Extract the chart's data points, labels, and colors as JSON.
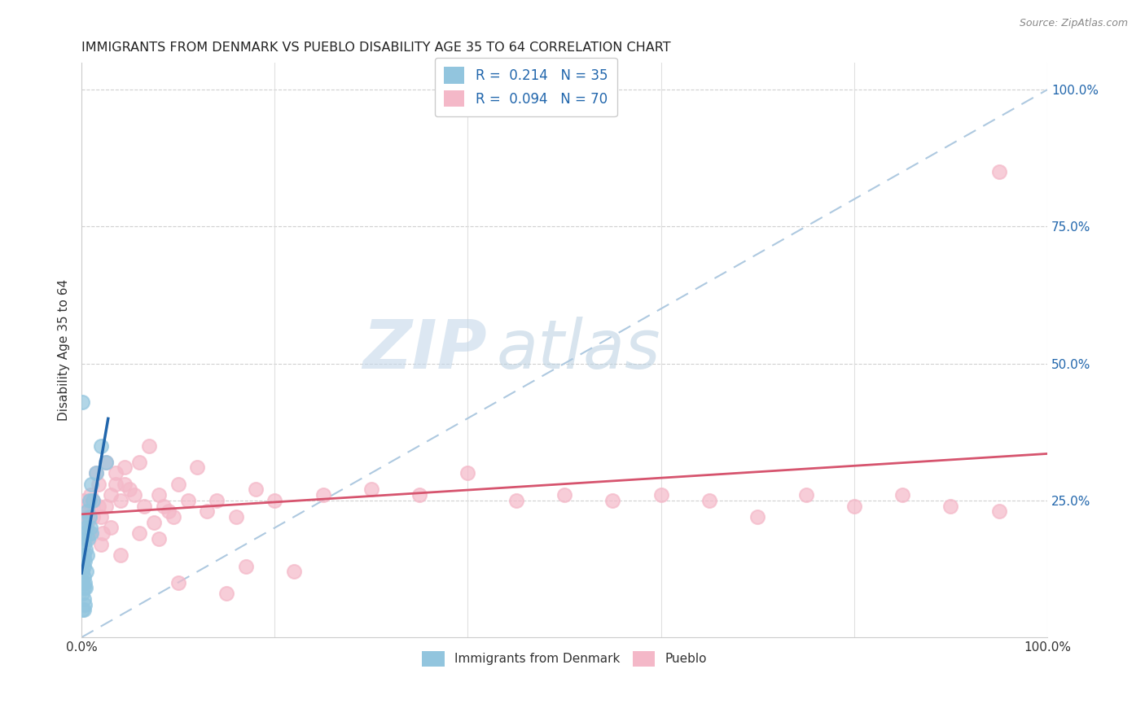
{
  "title": "IMMIGRANTS FROM DENMARK VS PUEBLO DISABILITY AGE 35 TO 64 CORRELATION CHART",
  "source": "Source: ZipAtlas.com",
  "ylabel": "Disability Age 35 to 64",
  "ytick_labels_right": [
    "100.0%",
    "75.0%",
    "50.0%",
    "25.0%"
  ],
  "ytick_positions_right": [
    1.0,
    0.75,
    0.5,
    0.25
  ],
  "legend1_label": "R =  0.214   N = 35",
  "legend2_label": "R =  0.094   N = 70",
  "legend_bottom1": "Immigrants from Denmark",
  "legend_bottom2": "Pueblo",
  "color_blue": "#92c5de",
  "color_pink": "#f4b8c8",
  "trendline1_color": "#2166ac",
  "trendline2_color": "#d6546e",
  "dashed_line_color": "#aec9e0",
  "watermark_zip": "ZIP",
  "watermark_atlas": "atlas",
  "denmark_x": [
    0.001,
    0.001,
    0.001,
    0.001,
    0.001,
    0.002,
    0.002,
    0.002,
    0.002,
    0.002,
    0.002,
    0.002,
    0.002,
    0.003,
    0.003,
    0.003,
    0.003,
    0.003,
    0.004,
    0.004,
    0.005,
    0.005,
    0.006,
    0.006,
    0.007,
    0.008,
    0.008,
    0.009,
    0.01,
    0.01,
    0.012,
    0.015,
    0.02,
    0.025,
    0.001
  ],
  "denmark_y": [
    0.05,
    0.08,
    0.1,
    0.12,
    0.14,
    0.05,
    0.07,
    0.09,
    0.11,
    0.13,
    0.15,
    0.17,
    0.19,
    0.06,
    0.1,
    0.14,
    0.18,
    0.21,
    0.09,
    0.16,
    0.12,
    0.2,
    0.15,
    0.23,
    0.18,
    0.22,
    0.25,
    0.2,
    0.19,
    0.28,
    0.25,
    0.3,
    0.35,
    0.32,
    0.43
  ],
  "pueblo_x": [
    0.001,
    0.002,
    0.003,
    0.004,
    0.005,
    0.006,
    0.007,
    0.008,
    0.009,
    0.01,
    0.012,
    0.015,
    0.018,
    0.02,
    0.022,
    0.025,
    0.03,
    0.035,
    0.04,
    0.045,
    0.05,
    0.06,
    0.07,
    0.08,
    0.09,
    0.1,
    0.12,
    0.14,
    0.16,
    0.18,
    0.2,
    0.25,
    0.3,
    0.35,
    0.4,
    0.45,
    0.5,
    0.55,
    0.6,
    0.65,
    0.7,
    0.75,
    0.8,
    0.85,
    0.9,
    0.95,
    0.02,
    0.03,
    0.04,
    0.06,
    0.08,
    0.1,
    0.15,
    0.005,
    0.008,
    0.012,
    0.018,
    0.025,
    0.035,
    0.045,
    0.055,
    0.065,
    0.075,
    0.085,
    0.095,
    0.11,
    0.13,
    0.17,
    0.22,
    0.95
  ],
  "pueblo_y": [
    0.2,
    0.25,
    0.22,
    0.24,
    0.18,
    0.21,
    0.19,
    0.22,
    0.26,
    0.23,
    0.25,
    0.3,
    0.28,
    0.22,
    0.19,
    0.24,
    0.26,
    0.3,
    0.25,
    0.28,
    0.27,
    0.32,
    0.35,
    0.26,
    0.23,
    0.28,
    0.31,
    0.25,
    0.22,
    0.27,
    0.25,
    0.26,
    0.27,
    0.26,
    0.3,
    0.25,
    0.26,
    0.25,
    0.26,
    0.25,
    0.22,
    0.26,
    0.24,
    0.26,
    0.24,
    0.23,
    0.17,
    0.2,
    0.15,
    0.19,
    0.18,
    0.1,
    0.08,
    0.22,
    0.19,
    0.22,
    0.24,
    0.32,
    0.28,
    0.31,
    0.26,
    0.24,
    0.21,
    0.24,
    0.22,
    0.25,
    0.23,
    0.13,
    0.12,
    0.85
  ]
}
